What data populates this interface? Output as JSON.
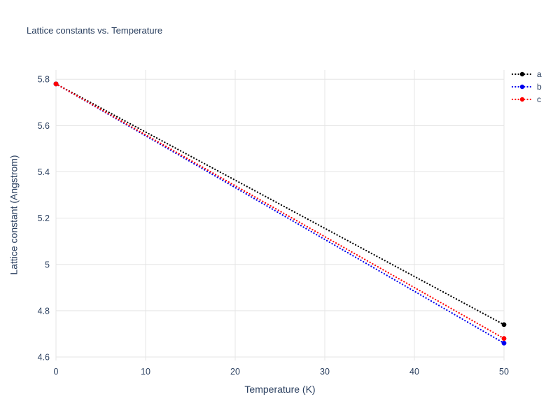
{
  "chart_data": {
    "type": "line",
    "title": "Lattice constants vs. Temperature",
    "xlabel": "Temperature (K)",
    "ylabel": "Lattice constant (Angstrom)",
    "xlim": [
      0,
      50
    ],
    "ylim": [
      4.585,
      5.84
    ],
    "xticks": [
      0,
      10,
      20,
      30,
      40,
      50
    ],
    "yticks": [
      4.6,
      4.8,
      5,
      5.2,
      5.4,
      5.6,
      5.8
    ],
    "grid": true,
    "legend_position": "top-right-outside",
    "colors": {
      "text": "#2a3f5f",
      "grid": "#e5e5e5",
      "background": "#ffffff"
    },
    "series": [
      {
        "name": "a",
        "color": "#000000",
        "style": "dotted",
        "x": [
          0,
          50
        ],
        "y": [
          5.78,
          4.74
        ]
      },
      {
        "name": "b",
        "color": "#0000ee",
        "style": "dotted",
        "x": [
          0,
          50
        ],
        "y": [
          5.78,
          4.66
        ]
      },
      {
        "name": "c",
        "color": "#ff0000",
        "style": "dotted",
        "x": [
          0,
          50
        ],
        "y": [
          5.78,
          4.68
        ]
      }
    ]
  }
}
